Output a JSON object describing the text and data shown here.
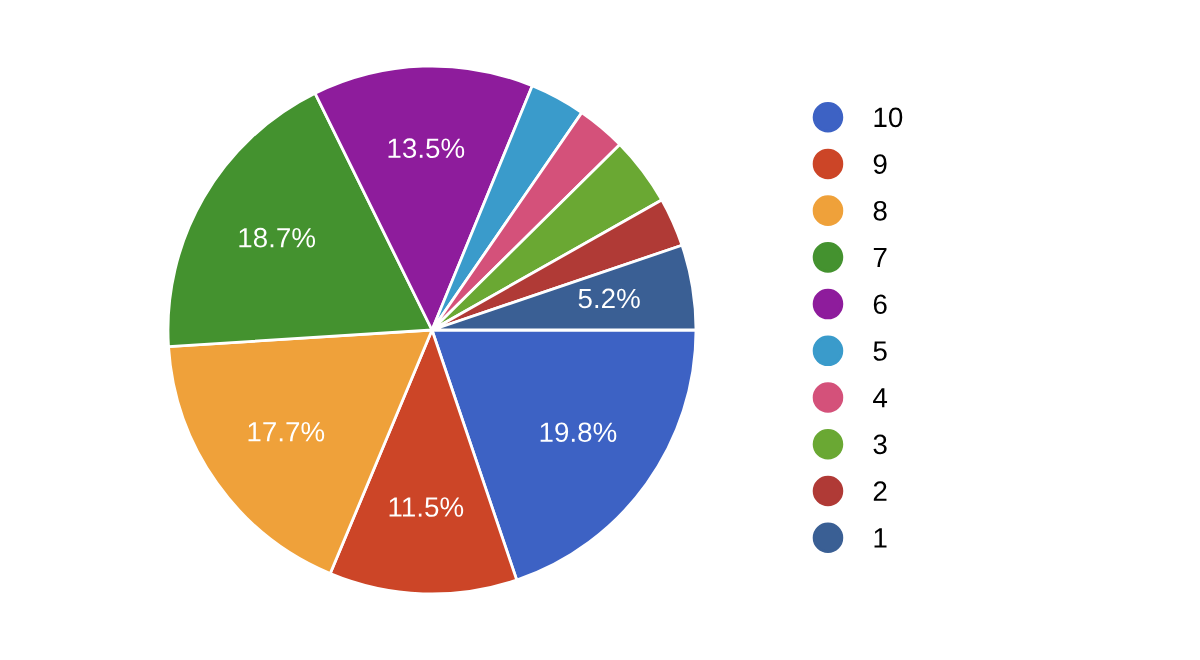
{
  "chart_data": {
    "type": "pie",
    "categories": [
      "10",
      "9",
      "8",
      "7",
      "6",
      "5",
      "4",
      "3",
      "2",
      "1"
    ],
    "values": [
      19.8,
      11.5,
      17.7,
      18.7,
      13.5,
      3.4,
      3.0,
      4.2,
      3.0,
      5.2
    ],
    "colors": [
      "#3d62c4",
      "#cc4527",
      "#efa13a",
      "#44922f",
      "#8e1c9c",
      "#3a9bcb",
      "#d4517a",
      "#6aa833",
      "#b03a36",
      "#3a5f94"
    ],
    "value_labels": [
      "19.8%",
      "11.5%",
      "17.7%",
      "18.7%",
      "13.5%",
      null,
      null,
      null,
      null,
      "5.2%"
    ],
    "legend": "right"
  }
}
